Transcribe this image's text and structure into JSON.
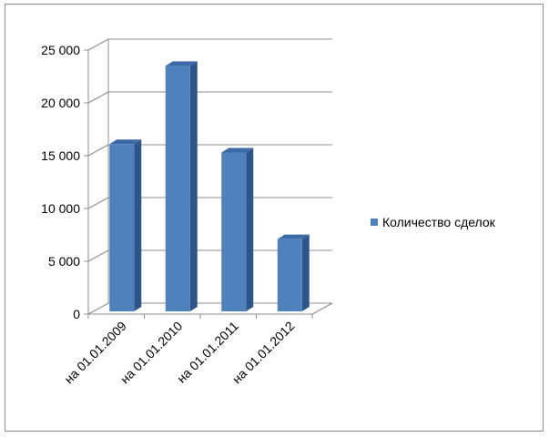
{
  "chart_data": {
    "type": "bar",
    "style": "3d-column",
    "categories": [
      "на 01.01.2009",
      "на 01.01.2010",
      "на 01.01.2011",
      "на 01.01.2012"
    ],
    "series": [
      {
        "name": "Количество сделок",
        "values": [
          16100,
          23500,
          15300,
          7100
        ]
      }
    ],
    "ylim": [
      0,
      25000
    ],
    "yticks": [
      0,
      5000,
      10000,
      15000,
      20000,
      25000
    ],
    "ytick_labels": [
      "0",
      "5 000",
      "10 000",
      "15 000",
      "20 000",
      "25 000"
    ],
    "title": "",
    "xlabel": "",
    "ylabel": "",
    "grid": true,
    "legend_position": "right",
    "colors": {
      "bar_front": "#4f81bd",
      "bar_side": "#2e5589",
      "bar_top": "#3d6aa6",
      "grid": "#8c8c8c",
      "axis": "#8c8c8c",
      "text": "#000000"
    }
  }
}
